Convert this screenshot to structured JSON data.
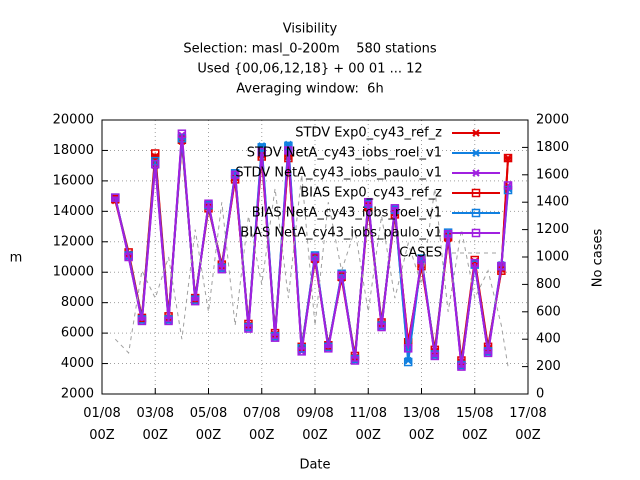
{
  "chart_data": {
    "type": "line",
    "title": "Visibility",
    "subtitle_lines": [
      "Selection: masl_0-200m    580 stations",
      "Used {00,06,12,18} + 00 01 ... 12",
      "Averaging window:  6h"
    ],
    "x_label": "Date",
    "y_label": "m",
    "y2_label": "No cases",
    "x": [
      "01/08 12Z",
      "02/08 00Z",
      "02/08 12Z",
      "03/08 00Z",
      "03/08 12Z",
      "04/08 00Z",
      "04/08 12Z",
      "05/08 00Z",
      "05/08 12Z",
      "06/08 00Z",
      "06/08 12Z",
      "07/08 00Z",
      "07/08 12Z",
      "08/08 00Z",
      "08/08 12Z",
      "09/08 00Z",
      "09/08 12Z",
      "10/08 00Z",
      "10/08 12Z",
      "11/08 00Z",
      "11/08 12Z",
      "12/08 00Z",
      "12/08 12Z",
      "13/08 00Z",
      "13/08 12Z",
      "14/08 00Z",
      "14/08 12Z",
      "15/08 00Z",
      "15/08 12Z",
      "16/08 00Z",
      "16/08 06Z"
    ],
    "xlim": [
      "01/08 00Z",
      "17/08 00Z"
    ],
    "xticks": [
      "01/08 00Z",
      "03/08 00Z",
      "05/08 00Z",
      "07/08 00Z",
      "09/08 00Z",
      "11/08 00Z",
      "13/08 00Z",
      "15/08 00Z",
      "17/08 00Z"
    ],
    "ylim": [
      2000,
      20000
    ],
    "yticks": [
      2000,
      4000,
      6000,
      8000,
      10000,
      12000,
      14000,
      16000,
      18000,
      20000
    ],
    "y2lim": [
      0,
      2000
    ],
    "y2ticks": [
      0,
      200,
      400,
      600,
      800,
      1000,
      1200,
      1400,
      1600,
      1800,
      2000
    ],
    "grid": true,
    "legend": "top-right",
    "series": [
      {
        "name": "STDV Exp0_cy43_ref_z",
        "color": "#e00000",
        "marker": "cross",
        "values": [
          14700,
          11200,
          7000,
          17600,
          7000,
          18600,
          8300,
          14300,
          10400,
          16200,
          6500,
          17700,
          5900,
          17600,
          5000,
          10800,
          5200,
          9600,
          4400,
          14200,
          6600,
          13900,
          5300,
          10500,
          4800,
          12200,
          4100,
          10700,
          5000,
          10200,
          17500
        ]
      },
      {
        "name": "STDV NetA_cy43_iobs_roel_v1",
        "color": "#1080e0",
        "marker": "cross",
        "values": [
          14900,
          11100,
          6900,
          17200,
          6900,
          18900,
          8200,
          14400,
          10300,
          16500,
          6400,
          18300,
          5800,
          18400,
          4900,
          11100,
          5100,
          9900,
          4300,
          14500,
          6500,
          14100,
          4200,
          10900,
          4600,
          12600,
          3900,
          10500,
          4800,
          10500,
          15500
        ]
      },
      {
        "name": "STDV NetA_cy43_iobs_paulo_v1",
        "color": "#a020e0",
        "marker": "cross",
        "values": [
          14900,
          11000,
          6800,
          17000,
          6800,
          19000,
          8100,
          14500,
          10200,
          16400,
          6300,
          17900,
          5700,
          18000,
          4800,
          11000,
          5000,
          9800,
          4200,
          14600,
          6400,
          14200,
          5000,
          10800,
          4500,
          12500,
          3800,
          10600,
          4700,
          10400,
          15700
        ]
      },
      {
        "name": "BIAS Exp0_cy43_ref_z",
        "color": "#e00000",
        "marker": "square",
        "values": [
          14800,
          11300,
          7000,
          17800,
          7100,
          18700,
          8300,
          14200,
          10500,
          16100,
          6600,
          17600,
          6000,
          17500,
          5100,
          10900,
          5200,
          9700,
          4500,
          14300,
          6700,
          13800,
          5400,
          10400,
          4900,
          12300,
          4200,
          10800,
          5100,
          10100,
          17500
        ]
      },
      {
        "name": "BIAS NetA_cy43_iobs_roel_v1",
        "color": "#1080e0",
        "marker": "square",
        "values": [
          14900,
          11100,
          6900,
          17300,
          6900,
          18800,
          8200,
          14400,
          10300,
          16500,
          6400,
          18200,
          5800,
          18300,
          5000,
          11100,
          5100,
          9900,
          4300,
          14500,
          6500,
          14100,
          4100,
          10900,
          4600,
          12600,
          3900,
          10500,
          4800,
          10400,
          15400
        ]
      },
      {
        "name": "BIAS NetA_cy43_iobs_paulo_v1",
        "color": "#a020e0",
        "marker": "square",
        "values": [
          14900,
          11000,
          6800,
          17100,
          6800,
          19100,
          8100,
          14500,
          10200,
          16400,
          6300,
          17900,
          5700,
          18000,
          4800,
          11000,
          5000,
          9800,
          4200,
          14600,
          6400,
          14200,
          5000,
          10800,
          4500,
          12500,
          3800,
          10600,
          4700,
          10400,
          15700
        ]
      },
      {
        "name": "CASES",
        "color": "#a0a0a0",
        "marker": "none",
        "axis": "y2",
        "dashed": true,
        "values": [
          400,
          300,
          900,
          700,
          1000,
          400,
          1200,
          600,
          1400,
          500,
          1300,
          800,
          1500,
          700,
          1600,
          500,
          1400,
          900,
          1200,
          600,
          1300,
          700,
          1100,
          800,
          1500,
          600,
          1200,
          700,
          900,
          500,
          200
        ]
      }
    ]
  }
}
